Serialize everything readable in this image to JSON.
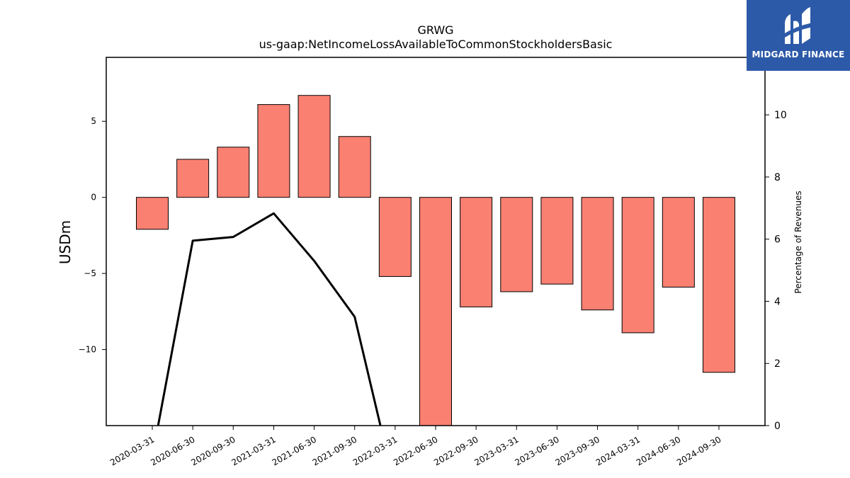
{
  "chart_data": {
    "type": "bar",
    "title": "GRWG",
    "subtitle": "us-gaap:NetIncomeLossAvailableToCommonStockholdersBasic",
    "ylabel": "USDm",
    "y2label": "Percentage of Revenues",
    "categories": [
      "2020-03-31",
      "2020-06-30",
      "2020-09-30",
      "2021-03-31",
      "2021-06-30",
      "2021-09-30",
      "2022-03-31",
      "2022-06-30",
      "2022-09-30",
      "2023-03-31",
      "2023-06-30",
      "2023-09-30",
      "2024-03-31",
      "2024-06-30",
      "2024-09-30"
    ],
    "series": [
      {
        "axis": "left",
        "type": "bar",
        "values": [
          -2.1,
          2.5,
          3.3,
          6.1,
          6.7,
          4.0,
          -5.2,
          -15.5,
          -7.2,
          -6.2,
          -5.7,
          -7.4,
          -8.9,
          -5.9,
          -11.5
        ]
      },
      {
        "axis": "right",
        "type": "line",
        "values": [
          -1.0,
          5.95,
          6.07,
          6.83,
          5.3,
          3.5,
          -2.0,
          null,
          null,
          null,
          null,
          null,
          null,
          null,
          null
        ]
      }
    ],
    "ylim": [
      -15,
      9.2
    ],
    "y2lim": [
      0,
      11.85
    ],
    "yticks": [
      -10,
      -5,
      0,
      5
    ],
    "ytick_labels": [
      "−10",
      "−5",
      "0",
      "5"
    ],
    "y2ticks": [
      0,
      2,
      4,
      6,
      8,
      10
    ],
    "grid": false,
    "colors": {
      "bar_fill": "#fa8072",
      "bar_edge": "#000000",
      "line": "#000000"
    }
  },
  "logo": {
    "text": "MIDGARD FINANCE",
    "background": "#2d5aa8"
  }
}
